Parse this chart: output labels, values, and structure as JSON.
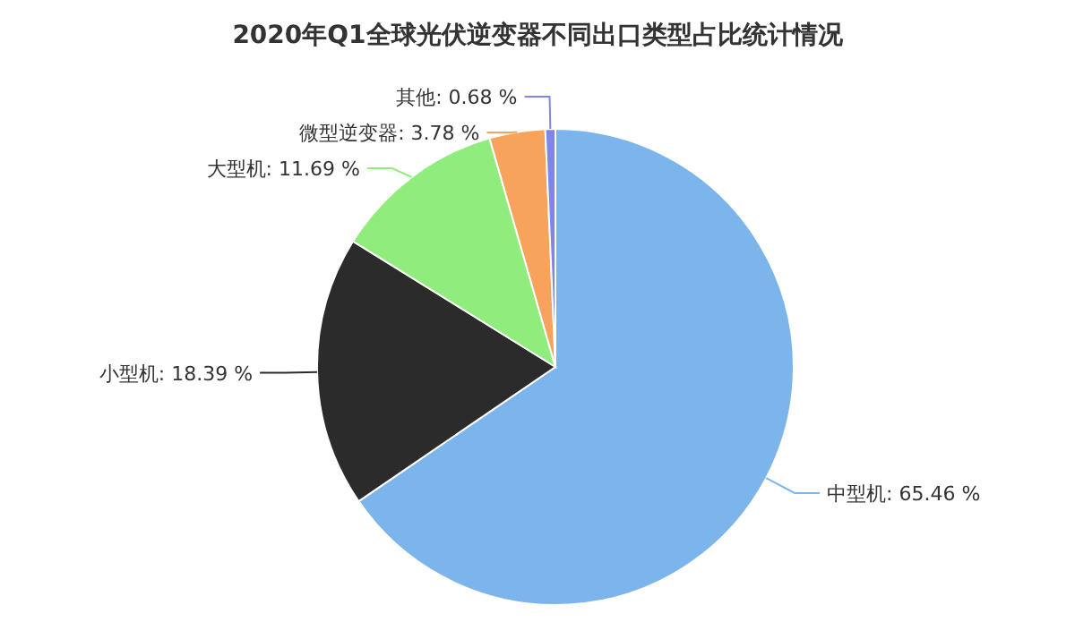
{
  "chart_data": {
    "type": "pie",
    "title": "2020年Q1全球光伏逆变器不同出口类型占比统计情况",
    "categories": [
      "中型机",
      "小型机",
      "大型机",
      "微型逆变器",
      "其他"
    ],
    "values": [
      65.46,
      18.39,
      11.69,
      3.78,
      0.68
    ],
    "value_labels": [
      "65.46 %",
      "18.39 %",
      "11.69 %",
      "3.78 %",
      "0.68 %"
    ],
    "colors": [
      "#7cb5ec",
      "#2b2b2b",
      "#90ed7d",
      "#f7a35c",
      "#8085e9"
    ],
    "legend": false
  }
}
